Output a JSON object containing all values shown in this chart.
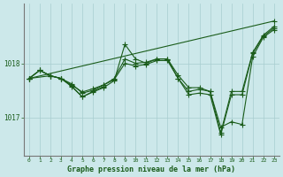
{
  "title": "Graphe pression niveau de la mer (hPa)",
  "background_color": "#cce8ea",
  "line_color": "#1a5c1a",
  "marker": "+",
  "markersize": 4,
  "linewidth": 0.8,
  "xlim": [
    -0.5,
    23.5
  ],
  "ylim": [
    1016.3,
    1019.1
  ],
  "yticks": [
    1017,
    1018
  ],
  "xticks": [
    0,
    1,
    2,
    3,
    4,
    5,
    6,
    7,
    8,
    9,
    10,
    11,
    12,
    13,
    14,
    15,
    16,
    17,
    18,
    19,
    20,
    21,
    22,
    23
  ],
  "grid_color": "#a8cdd0",
  "series": [
    {
      "x": [
        0,
        23
      ],
      "y": [
        1017.72,
        1018.78
      ]
    },
    {
      "x": [
        0,
        1,
        2,
        3,
        4,
        5,
        6,
        7,
        8,
        9,
        10,
        11,
        12,
        13,
        14,
        15,
        16,
        17,
        18,
        19,
        20,
        21,
        22,
        23
      ],
      "y": [
        1017.72,
        1017.87,
        1017.77,
        1017.72,
        1017.6,
        1017.47,
        1017.53,
        1017.6,
        1017.72,
        1018.08,
        1018.0,
        1018.02,
        1018.08,
        1018.08,
        1017.78,
        1017.55,
        1017.55,
        1017.48,
        1016.82,
        1016.92,
        1016.87,
        1018.12,
        1018.48,
        1018.62
      ]
    },
    {
      "x": [
        0,
        1,
        2,
        3,
        4,
        5,
        6,
        7,
        8,
        9,
        10,
        11,
        12,
        13,
        14,
        15,
        16,
        17,
        18,
        19,
        20,
        21,
        22,
        23
      ],
      "y": [
        1017.72,
        1017.87,
        1017.77,
        1017.72,
        1017.57,
        1017.38,
        1017.47,
        1017.55,
        1017.68,
        1018.35,
        1018.08,
        1018.0,
        1018.08,
        1018.08,
        1017.72,
        1017.48,
        1017.52,
        1017.48,
        1016.72,
        1017.48,
        1017.48,
        1018.2,
        1018.52,
        1018.68
      ]
    },
    {
      "x": [
        0,
        2,
        3,
        4,
        5,
        6,
        7,
        8,
        9,
        10,
        11,
        12,
        13,
        14,
        15,
        16,
        17,
        18,
        19,
        20,
        21,
        22,
        23
      ],
      "y": [
        1017.72,
        1017.77,
        1017.72,
        1017.62,
        1017.45,
        1017.5,
        1017.6,
        1017.7,
        1018.0,
        1017.95,
        1017.98,
        1018.05,
        1018.05,
        1017.72,
        1017.42,
        1017.45,
        1017.42,
        1016.68,
        1017.42,
        1017.42,
        1018.18,
        1018.5,
        1018.65
      ]
    },
    {
      "x": [
        0,
        1,
        2,
        3,
        4,
        5,
        6,
        7
      ],
      "y": [
        1017.72,
        1017.87,
        1017.77,
        1017.72,
        1017.58,
        1017.38,
        1017.48,
        1017.57
      ]
    }
  ]
}
